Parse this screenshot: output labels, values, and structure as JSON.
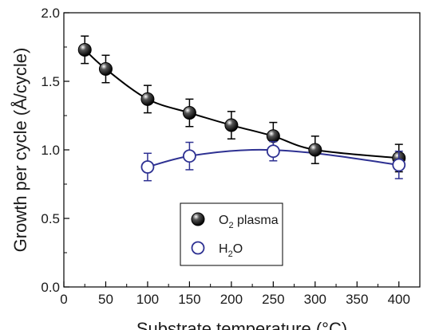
{
  "chart_data": {
    "type": "scatter",
    "xlabel": "Substrate temperature (°C)",
    "ylabel": "Growth per cycle (Å/cycle)",
    "xlim": [
      0,
      425
    ],
    "ylim": [
      0.0,
      2.0
    ],
    "xticks": [
      0,
      50,
      100,
      150,
      200,
      250,
      300,
      350,
      400
    ],
    "yticks": [
      0.0,
      0.5,
      1.0,
      1.5,
      2.0
    ],
    "ytick_labels": [
      "0.0",
      "0.5",
      "1.0",
      "1.5",
      "2.0"
    ],
    "grid": false,
    "legend_placement": "center-bottom",
    "series": [
      {
        "name": "O2 plasma",
        "legend_main": "O",
        "legend_sub": "2",
        "legend_rest": " plasma",
        "marker": "filled-circle",
        "color": "#000000",
        "x": [
          25,
          50,
          100,
          150,
          200,
          250,
          300,
          400
        ],
        "y": [
          1.73,
          1.59,
          1.37,
          1.27,
          1.18,
          1.1,
          1.0,
          0.94
        ],
        "yerr": [
          0.1,
          0.1,
          0.1,
          0.1,
          0.1,
          0.1,
          0.1,
          0.1
        ],
        "fit_color": "#000000"
      },
      {
        "name": "H2O",
        "legend_main": "H",
        "legend_sub": "2",
        "legend_rest": "O",
        "marker": "open-circle",
        "color": "#2e3192",
        "x": [
          100,
          150,
          250,
          400
        ],
        "y": [
          0.875,
          0.955,
          0.99,
          0.89
        ],
        "yerr": [
          0.1,
          0.1,
          0.07,
          0.1
        ],
        "fit_color": "#2e3192"
      }
    ]
  }
}
